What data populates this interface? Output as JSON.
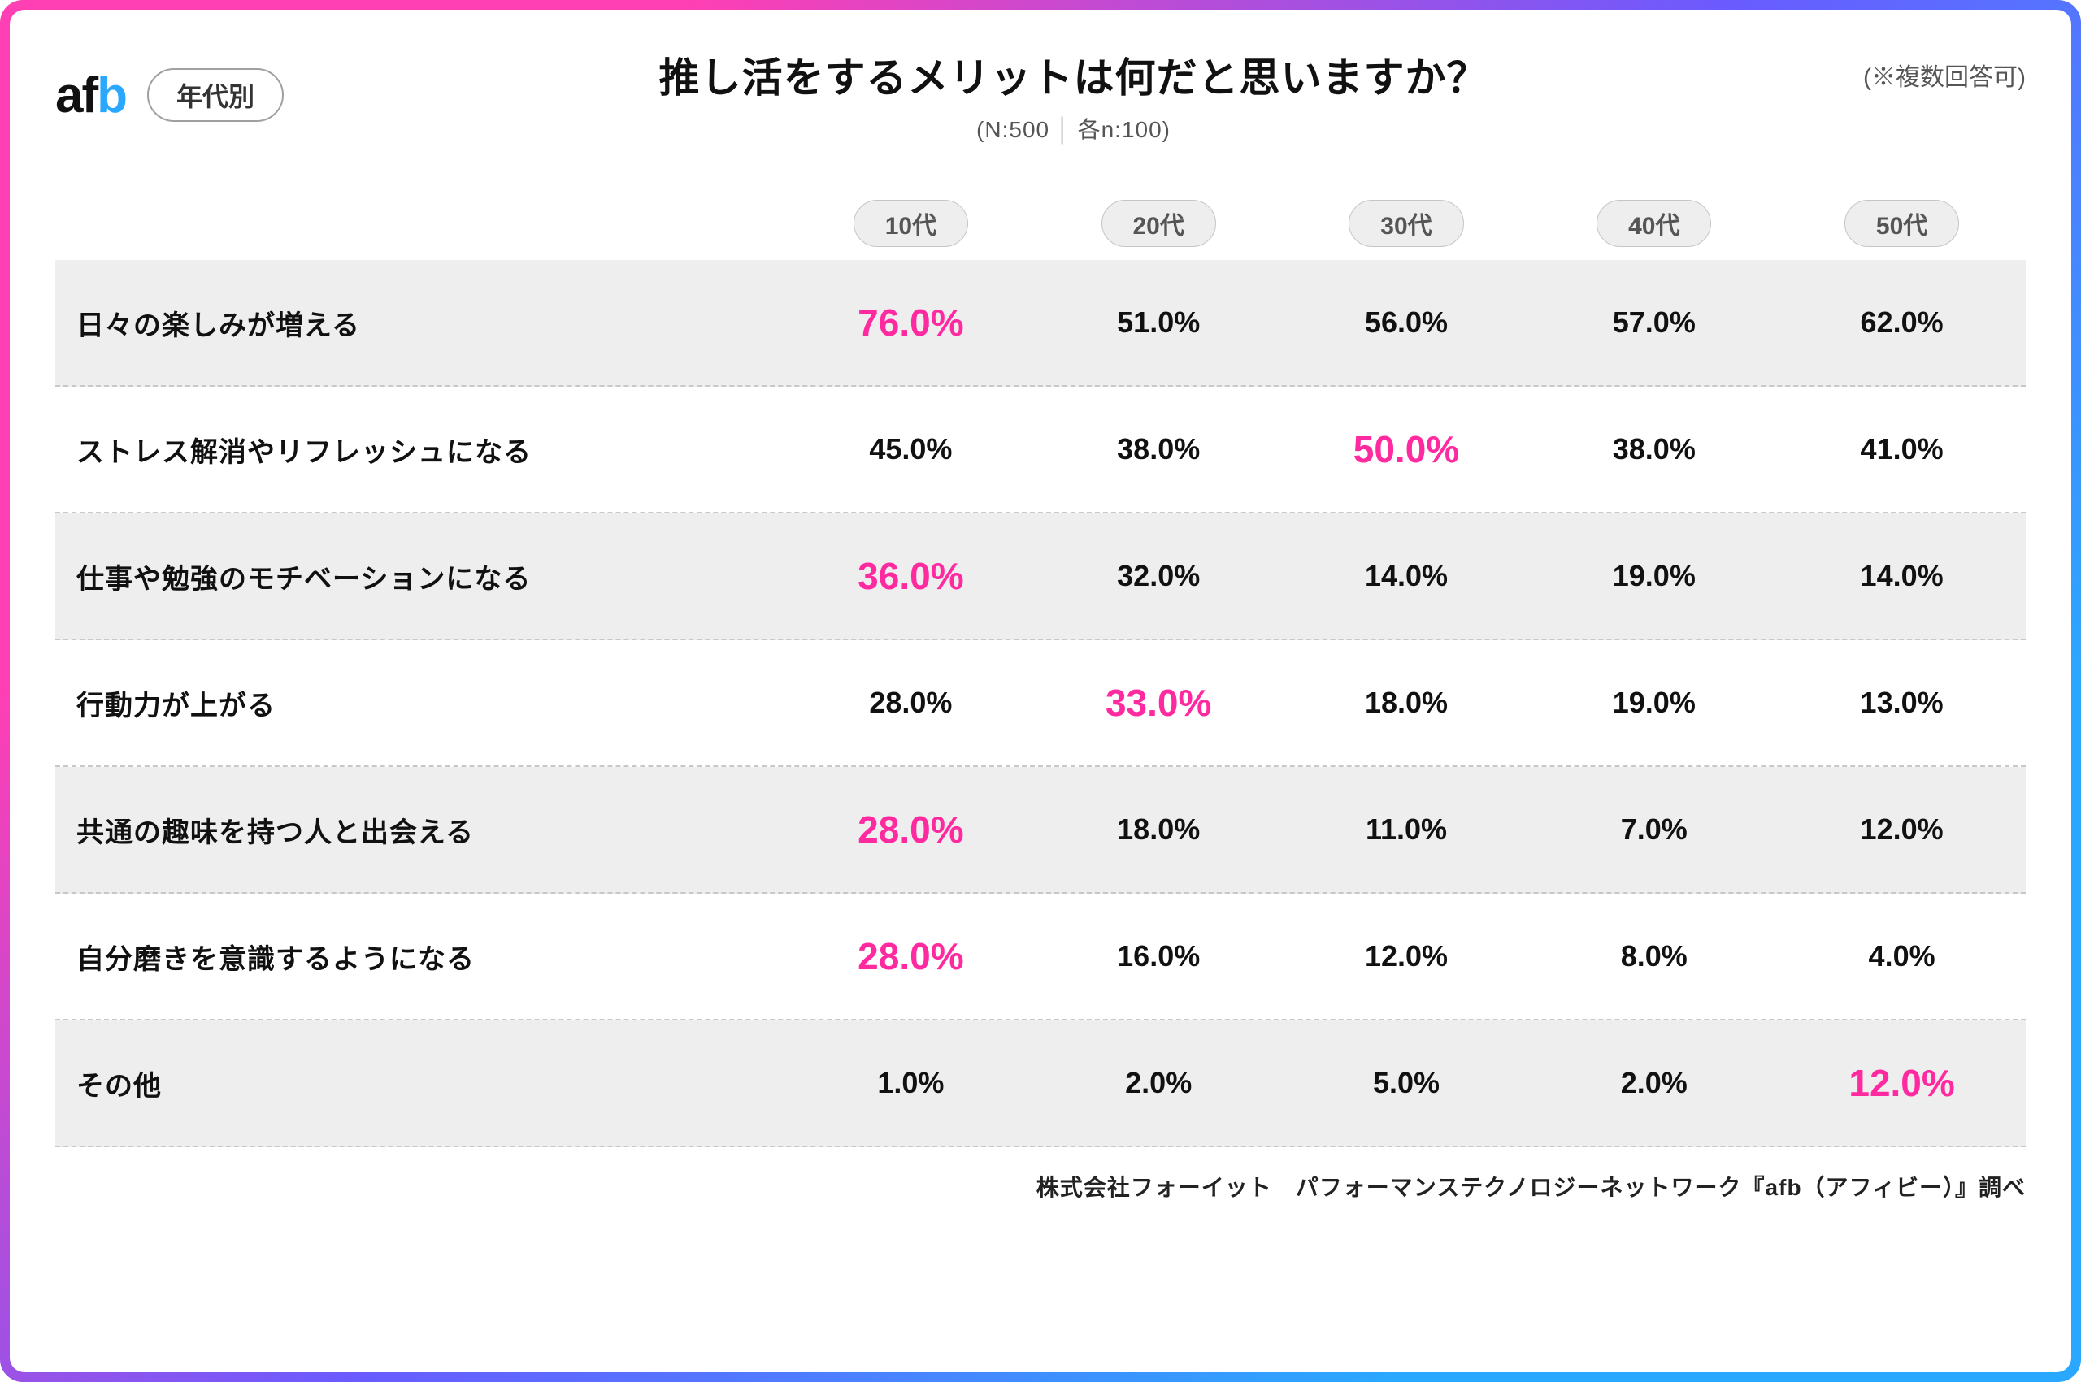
{
  "brand": {
    "part1": "af",
    "part2": "b"
  },
  "badge": "年代別",
  "title": "推し活をするメリットは何だと思いますか？",
  "subtitle_left": "(N:500",
  "subtitle_right": "各n:100)",
  "note": "(※複数回答可)",
  "columns": [
    "10代",
    "20代",
    "30代",
    "40代",
    "50代"
  ],
  "highlight_color": "#ff2aa0",
  "normal_color": "#111111",
  "row_bg_odd": "#eeeeee",
  "row_bg_even": "#ffffff",
  "border_dash_color": "#c8c8c8",
  "rows": [
    {
      "label": "日々の楽しみが増える",
      "values": [
        "76.0%",
        "51.0%",
        "56.0%",
        "57.0%",
        "62.0%"
      ],
      "highlight": [
        true,
        false,
        false,
        false,
        false
      ]
    },
    {
      "label": "ストレス解消やリフレッシュになる",
      "values": [
        "45.0%",
        "38.0%",
        "50.0%",
        "38.0%",
        "41.0%"
      ],
      "highlight": [
        false,
        false,
        true,
        false,
        false
      ]
    },
    {
      "label": "仕事や勉強のモチベーションになる",
      "values": [
        "36.0%",
        "32.0%",
        "14.0%",
        "19.0%",
        "14.0%"
      ],
      "highlight": [
        true,
        false,
        false,
        false,
        false
      ]
    },
    {
      "label": "行動力が上がる",
      "values": [
        "28.0%",
        "33.0%",
        "18.0%",
        "19.0%",
        "13.0%"
      ],
      "highlight": [
        false,
        true,
        false,
        false,
        false
      ]
    },
    {
      "label": "共通の趣味を持つ人と出会える",
      "values": [
        "28.0%",
        "18.0%",
        "11.0%",
        "7.0%",
        "12.0%"
      ],
      "highlight": [
        true,
        false,
        false,
        false,
        false
      ]
    },
    {
      "label": "自分磨きを意識するようになる",
      "values": [
        "28.0%",
        "16.0%",
        "12.0%",
        "8.0%",
        "4.0%"
      ],
      "highlight": [
        true,
        false,
        false,
        false,
        false
      ]
    },
    {
      "label": "その他",
      "values": [
        "1.0%",
        "2.0%",
        "5.0%",
        "2.0%",
        "12.0%"
      ],
      "highlight": [
        false,
        false,
        false,
        false,
        true
      ]
    }
  ],
  "footer": "株式会社フォーイット　パフォーマンステクノロジーネットワーク『afb（アフィビー）』調べ"
}
